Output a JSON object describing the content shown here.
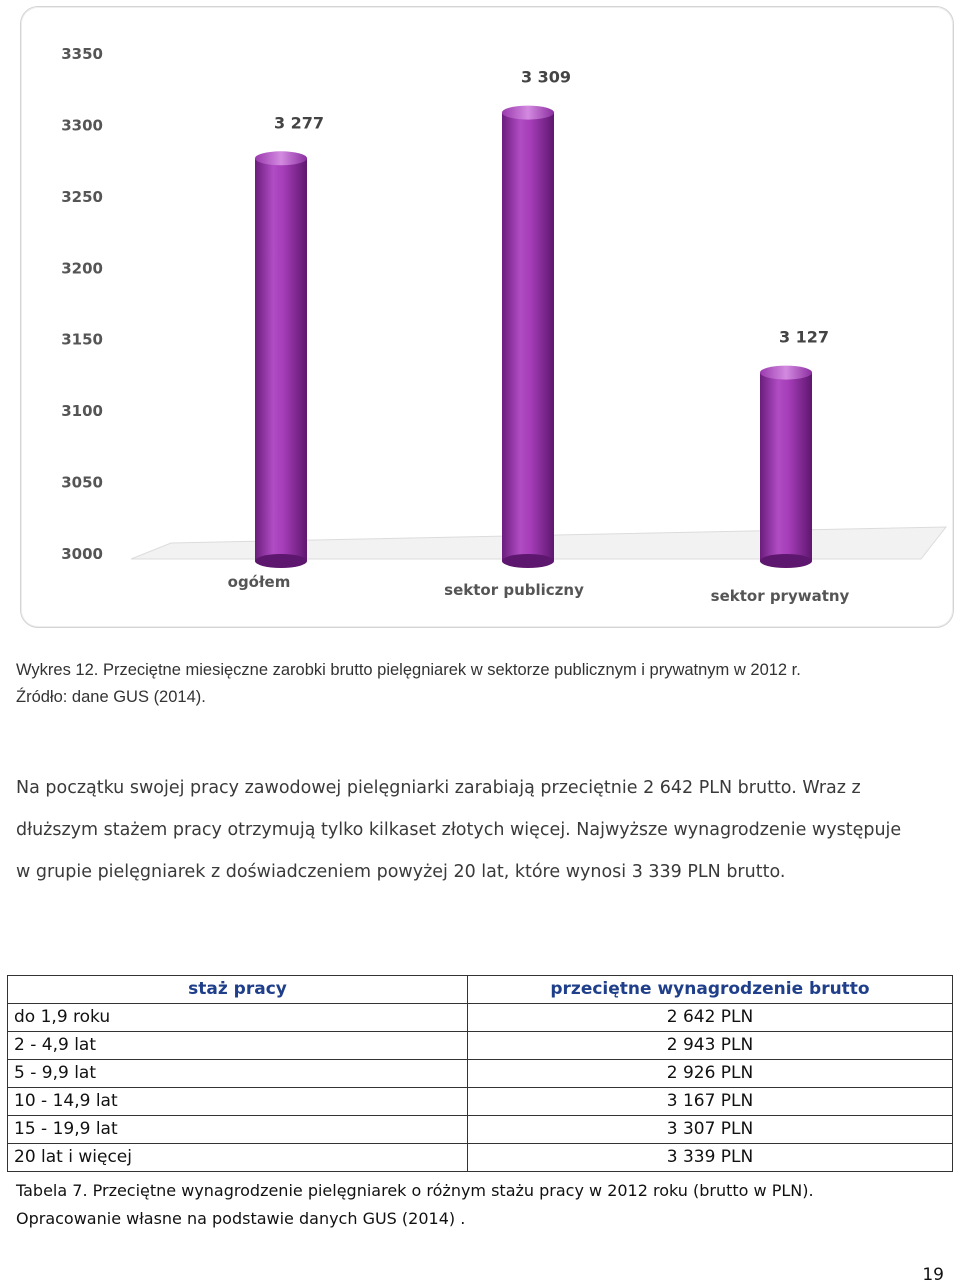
{
  "chart_data": {
    "type": "bar",
    "categories": [
      "ogółem",
      "sektor publiczny",
      "sektor prywatny"
    ],
    "values": [
      3277,
      3309,
      3127
    ],
    "value_labels": [
      "3 277",
      "3 309",
      "3 127"
    ],
    "ylim": [
      3000,
      3350
    ],
    "yticks": [
      "3000",
      "3050",
      "3100",
      "3150",
      "3200",
      "3250",
      "3300",
      "3350"
    ],
    "ytick_values": [
      3000,
      3050,
      3100,
      3150,
      3200,
      3250,
      3300,
      3350
    ],
    "bar_color": "#8a2a9c",
    "title": "",
    "xlabel": "",
    "ylabel": ""
  },
  "figure_caption": {
    "line1": "Wykres 12. Przeciętne miesięczne zarobki brutto pielęgniarek w sektorze publicznym i prywatnym w 2012 r.",
    "line2": "Źródło: dane GUS (2014)."
  },
  "paragraph": {
    "line1": "Na początku swojej pracy zawodowej pielęgniarki zarabiają przeciętnie 2 642 PLN brutto. Wraz z",
    "line2": "dłuższym stażem pracy otrzymują tylko kilkaset złotych więcej. Najwyższe wynagrodzenie występuje",
    "line3": "w grupie pielęgniarek z doświadczeniem powyżej 20 lat, które wynosi 3 339 PLN brutto."
  },
  "table": {
    "headers": [
      "staż pracy",
      "przeciętne wynagrodzenie brutto"
    ],
    "rows": [
      [
        "do 1,9 roku",
        "2 642 PLN"
      ],
      [
        "2 - 4,9 lat",
        "2 943 PLN"
      ],
      [
        "5 - 9,9 lat",
        "2 926 PLN"
      ],
      [
        "10 - 14,9 lat",
        "3 167 PLN"
      ],
      [
        "15 - 19,9 lat",
        "3 307 PLN"
      ],
      [
        "20 lat i więcej",
        "3 339 PLN"
      ]
    ]
  },
  "table_caption": {
    "line1": "Tabela 7. Przeciętne wynagrodzenie pielęgniarek o różnym stażu pracy w 2012 roku (brutto w PLN).",
    "line2": "Opracowanie  własne na podstawie danych GUS (2014) ."
  },
  "page_number": "19"
}
